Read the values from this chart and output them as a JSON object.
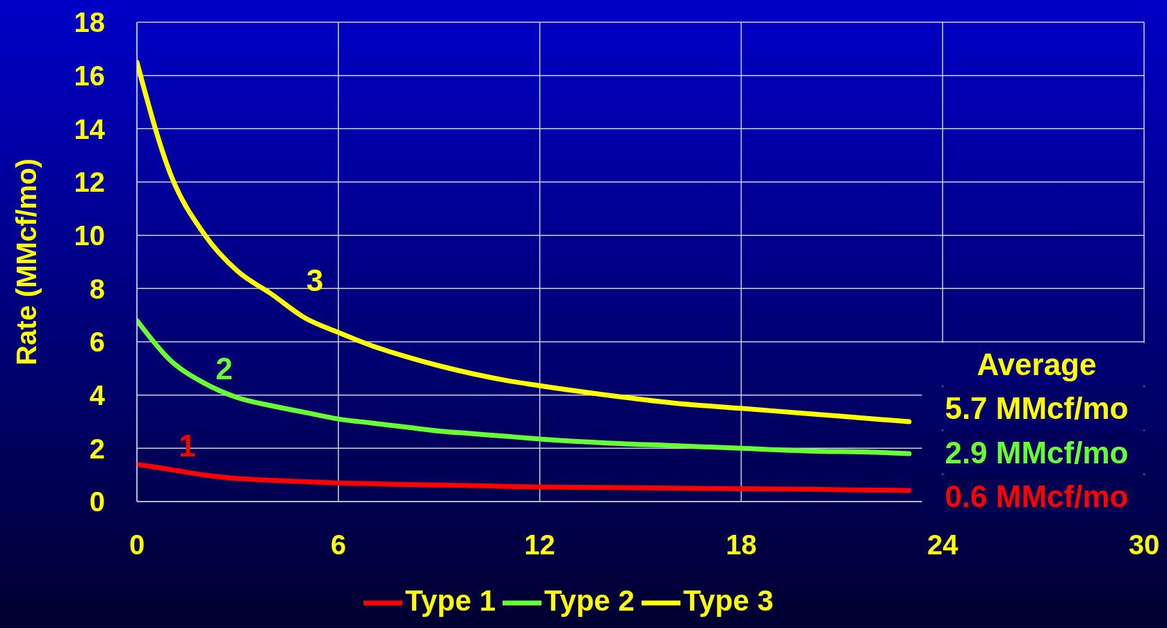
{
  "chart_data": {
    "type": "line",
    "ylabel": "Rate (MMcf/mo)",
    "x": [
      0,
      1,
      2,
      3,
      4,
      5,
      6,
      7,
      8,
      9,
      10,
      11,
      12,
      14,
      16,
      18,
      20,
      22,
      23
    ],
    "series": [
      {
        "name": "Type 1",
        "color": "#ff0000",
        "values": [
          1.4,
          1.2,
          1.0,
          0.87,
          0.8,
          0.75,
          0.7,
          0.67,
          0.64,
          0.62,
          0.6,
          0.57,
          0.55,
          0.53,
          0.5,
          0.48,
          0.46,
          0.43,
          0.42
        ]
      },
      {
        "name": "Type 2",
        "color": "#66ff33",
        "values": [
          6.8,
          5.3,
          4.45,
          3.9,
          3.6,
          3.35,
          3.1,
          2.95,
          2.8,
          2.65,
          2.55,
          2.45,
          2.35,
          2.2,
          2.1,
          2.0,
          1.9,
          1.85,
          1.8
        ]
      },
      {
        "name": "Type 3",
        "color": "#ffff00",
        "values": [
          16.5,
          12.3,
          10.05,
          8.65,
          7.8,
          6.9,
          6.35,
          5.85,
          5.45,
          5.1,
          4.8,
          4.55,
          4.35,
          4.0,
          3.7,
          3.5,
          3.3,
          3.1,
          3.0
        ]
      }
    ],
    "xlim": [
      0,
      30
    ],
    "xticks": [
      0,
      6,
      12,
      18,
      24,
      30
    ],
    "ylim": [
      0,
      18
    ],
    "yticks": [
      0,
      2,
      4,
      6,
      8,
      10,
      12,
      14,
      16,
      18
    ],
    "grid": true,
    "legend": "bottom",
    "marker": "none",
    "line_style": "solid",
    "annotations": [
      "1",
      "2",
      "3",
      "Average",
      "5.7 MMcf/mo",
      "2.9 MMcf/mo",
      "0.6 MMcf/mo"
    ]
  }
}
